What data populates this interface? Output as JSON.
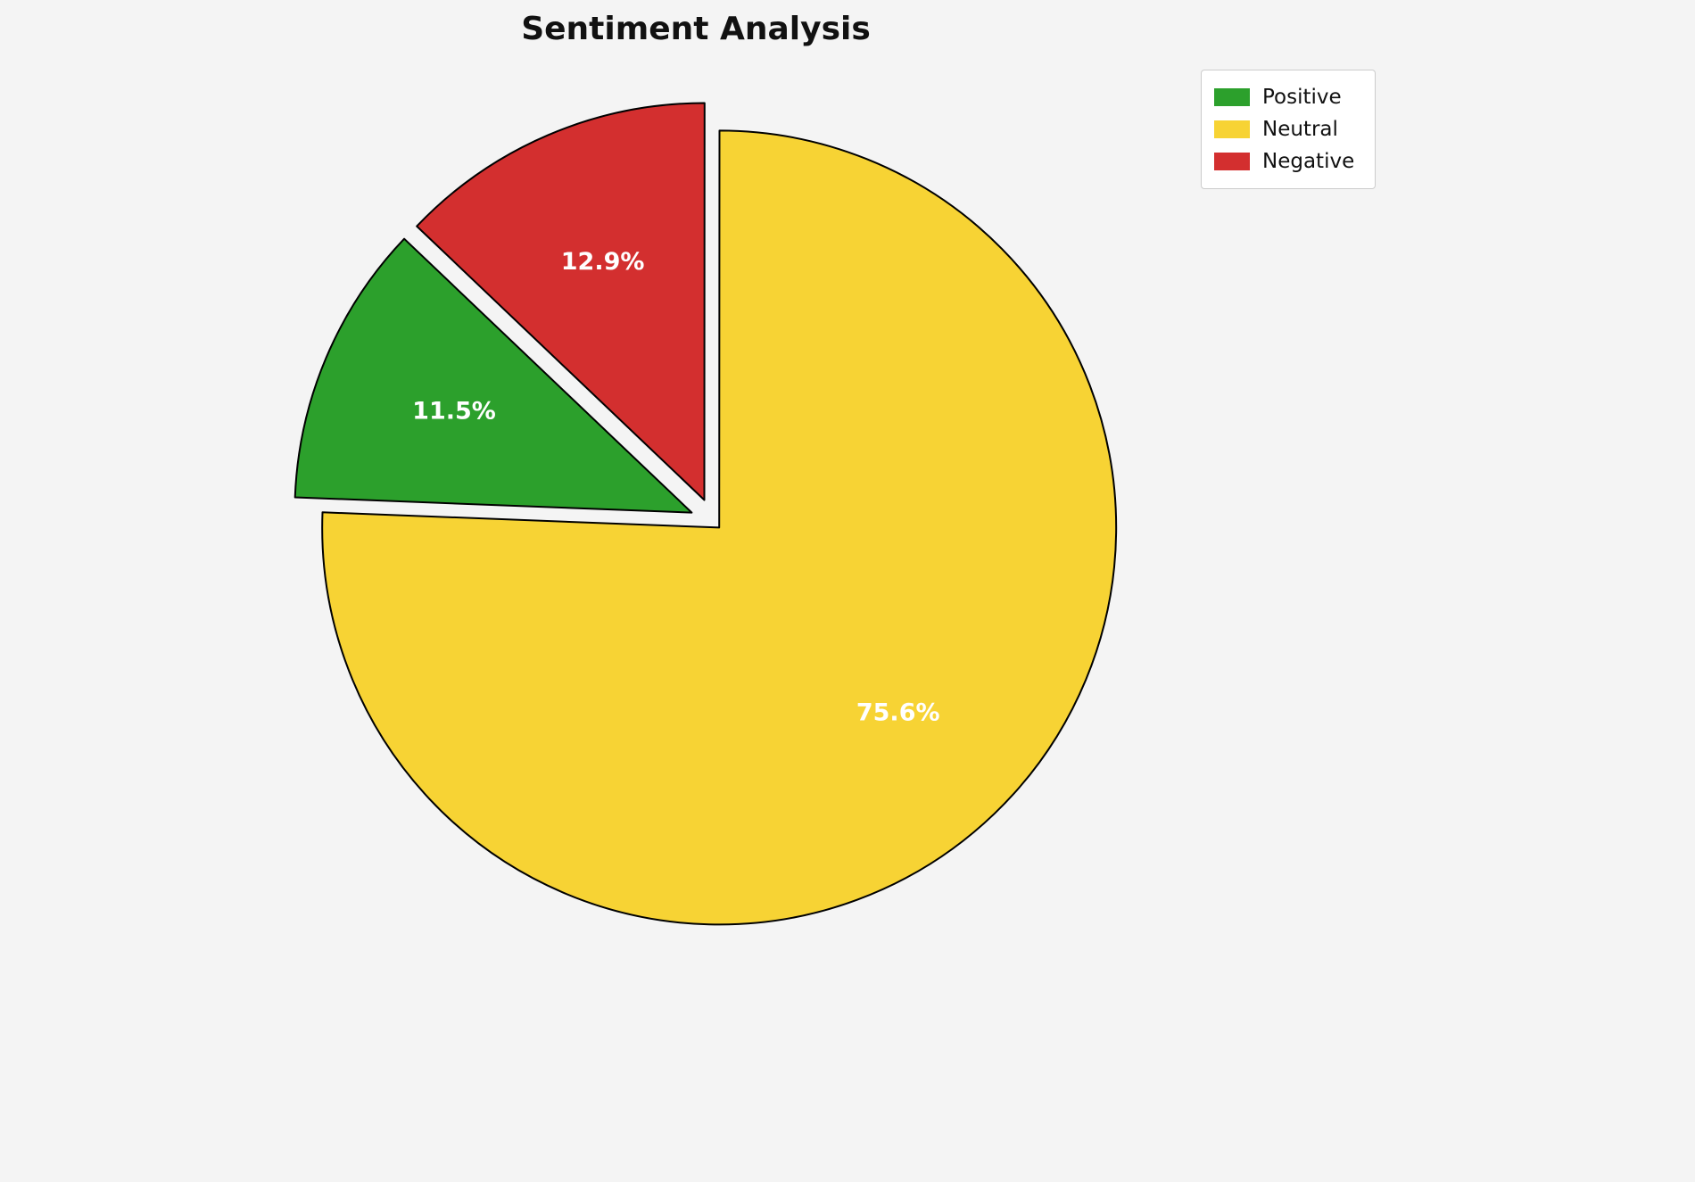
{
  "title": "Sentiment Analysis",
  "background_color": "#f4f4f4",
  "chart_data": {
    "type": "pie",
    "title": "Sentiment Analysis",
    "slices": [
      {
        "label": "Positive",
        "value": 11.5,
        "pct_label": "11.5%",
        "color": "#2ca02c",
        "explode": 0.06
      },
      {
        "label": "Neutral",
        "value": 75.6,
        "pct_label": "75.6%",
        "color": "#f7d334",
        "explode": 0.02
      },
      {
        "label": "Negative",
        "value": 12.9,
        "pct_label": "12.9%",
        "color": "#d32f2f",
        "explode": 0.06
      }
    ],
    "start_angle_deg": 136.4,
    "direction": "counterclockwise",
    "wedge_edge_color": "#000000",
    "pct_label_color": "#ffffff",
    "pct_label_distance": 0.65,
    "legend": {
      "position": "upper right",
      "items": [
        {
          "label": "Positive",
          "color": "#2ca02c"
        },
        {
          "label": "Neutral",
          "color": "#f7d334"
        },
        {
          "label": "Negative",
          "color": "#d32f2f"
        }
      ]
    }
  }
}
